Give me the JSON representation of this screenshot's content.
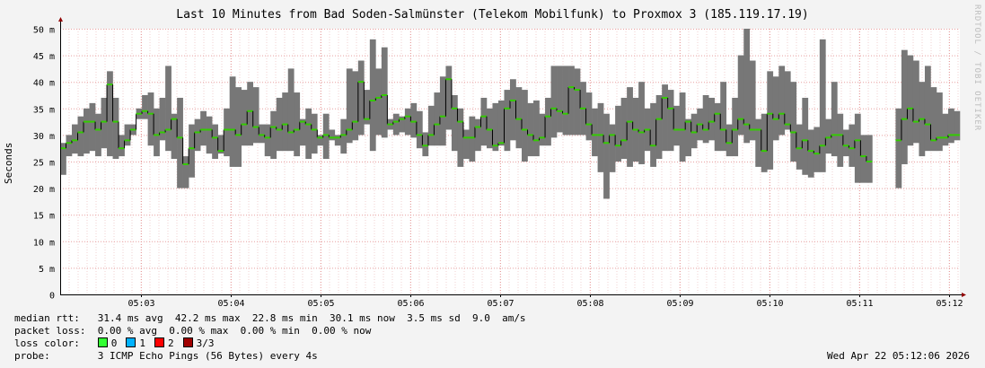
{
  "title": "Last 10 Minutes from Bad Soden-Salmünster (Telekom Mobilfunk) to Proxmox 3 (185.119.17.19)",
  "watermark": "RRDTOOL / TOBI OETIKER",
  "colors": {
    "background": "#f3f3f3",
    "plot_bg": "#ffffff",
    "grid": "#e8a0a0",
    "smoke": "#777777",
    "median": "#33cc00",
    "axis": "#000000"
  },
  "chart_data": {
    "type": "bar",
    "ylabel": "Seconds",
    "ylim": [
      0,
      50
    ],
    "yticks": [
      {
        "v": 0,
        "label": "0"
      },
      {
        "v": 5,
        "label": "5 m"
      },
      {
        "v": 10,
        "label": "10 m"
      },
      {
        "v": 15,
        "label": "15 m"
      },
      {
        "v": 20,
        "label": "20 m"
      },
      {
        "v": 25,
        "label": "25 m"
      },
      {
        "v": 30,
        "label": "30 m"
      },
      {
        "v": 35,
        "label": "35 m"
      },
      {
        "v": 40,
        "label": "40 m"
      },
      {
        "v": 45,
        "label": "45 m"
      },
      {
        "v": 50,
        "label": "50 m"
      }
    ],
    "xticks": [
      "05:03",
      "05:04",
      "05:05",
      "05:06",
      "05:07",
      "05:08",
      "05:09",
      "05:10",
      "05:11",
      "05:12"
    ],
    "series_note": "each sample: [min ms, max ms, median ms]; null = no data",
    "samples": [
      [
        22.5,
        28.5,
        27.5
      ],
      [
        26,
        30,
        28.5
      ],
      [
        26.5,
        32,
        29
      ],
      [
        26,
        33.5,
        30.5
      ],
      [
        26.5,
        35,
        32.5
      ],
      [
        27,
        36,
        32.5
      ],
      [
        26,
        34,
        31
      ],
      [
        27.5,
        37,
        32.5
      ],
      [
        26,
        42,
        39.5
      ],
      [
        25.5,
        37,
        32.5
      ],
      [
        26,
        30,
        27.5
      ],
      [
        28,
        32,
        29
      ],
      [
        30,
        32,
        31
      ],
      [
        33,
        35,
        34
      ],
      [
        33,
        37.5,
        34.5
      ],
      [
        28,
        38,
        34
      ],
      [
        26,
        35,
        30
      ],
      [
        29,
        37,
        30.5
      ],
      [
        27,
        43,
        31
      ],
      [
        25.5,
        34,
        33
      ],
      [
        20,
        37,
        29.5
      ],
      [
        20,
        26,
        24.5
      ],
      [
        22,
        32,
        27.5
      ],
      [
        27,
        33,
        30.5
      ],
      [
        28,
        34.5,
        31
      ],
      [
        26.5,
        33.5,
        31
      ],
      [
        25.5,
        32,
        29.5
      ],
      [
        26.5,
        30,
        27
      ],
      [
        26,
        35,
        31
      ],
      [
        24,
        41,
        31
      ],
      [
        24,
        39,
        30
      ],
      [
        28,
        38.5,
        32
      ],
      [
        28,
        40,
        34.5
      ],
      [
        28.5,
        39,
        31.5
      ],
      [
        28.5,
        32,
        30
      ],
      [
        26,
        32,
        29.5
      ],
      [
        25.5,
        34.5,
        31.5
      ],
      [
        27,
        37,
        31
      ],
      [
        27,
        38,
        32
      ],
      [
        27,
        42.5,
        30.5
      ],
      [
        26,
        38,
        31
      ],
      [
        28,
        33,
        32.5
      ],
      [
        25.5,
        35,
        32
      ],
      [
        26.5,
        34,
        31
      ],
      [
        28,
        30,
        29.5
      ],
      [
        25.5,
        34,
        30
      ],
      [
        29,
        31,
        29.5
      ],
      [
        28,
        30,
        29.5
      ],
      [
        26.5,
        33,
        30
      ],
      [
        28.5,
        42.5,
        31
      ],
      [
        29,
        42,
        32.5
      ],
      [
        30,
        44,
        40
      ],
      [
        32,
        38.5,
        33
      ],
      [
        27,
        48,
        36.5
      ],
      [
        30,
        42.5,
        37
      ],
      [
        29.5,
        46.5,
        37.5
      ],
      [
        31,
        33,
        32
      ],
      [
        30,
        34,
        32.5
      ],
      [
        30.5,
        33.5,
        33
      ],
      [
        30,
        35,
        33.5
      ],
      [
        29.5,
        36,
        32.5
      ],
      [
        27.5,
        34.5,
        30
      ],
      [
        26,
        30.5,
        28
      ],
      [
        28,
        35.5,
        30
      ],
      [
        28,
        38,
        32
      ],
      [
        28,
        41,
        33.5
      ],
      [
        31,
        43,
        40.5
      ],
      [
        27,
        37.5,
        35
      ],
      [
        24,
        35,
        32.5
      ],
      [
        25.5,
        31,
        29.5
      ],
      [
        25,
        33.5,
        29.5
      ],
      [
        27,
        33,
        31.5
      ],
      [
        28,
        37,
        33.5
      ],
      [
        27.5,
        35,
        31
      ],
      [
        27,
        36,
        28
      ],
      [
        28,
        36.5,
        28.5
      ],
      [
        27,
        38.5,
        35
      ],
      [
        29,
        40.5,
        36.5
      ],
      [
        27.5,
        39,
        33
      ],
      [
        25,
        38.5,
        31
      ],
      [
        26,
        36,
        30
      ],
      [
        26,
        36.5,
        29
      ],
      [
        28,
        34,
        29.5
      ],
      [
        28,
        37,
        33.5
      ],
      [
        29.5,
        43,
        35
      ],
      [
        30.5,
        43,
        34.5
      ],
      [
        30,
        43,
        34
      ],
      [
        30,
        43,
        39
      ],
      [
        30,
        42.5,
        38.5
      ],
      [
        30,
        40,
        35
      ],
      [
        29,
        38,
        32
      ],
      [
        26,
        35,
        30
      ],
      [
        23,
        36,
        30
      ],
      [
        18,
        34,
        28.5
      ],
      [
        23,
        32,
        30
      ],
      [
        25,
        35.5,
        28
      ],
      [
        25.5,
        37,
        29
      ],
      [
        24,
        39,
        32.5
      ],
      [
        25,
        37,
        31
      ],
      [
        24.5,
        40,
        30.5
      ],
      [
        27,
        35,
        31
      ],
      [
        24,
        36,
        28
      ],
      [
        25.5,
        37.5,
        33
      ],
      [
        27,
        39.5,
        37
      ],
      [
        27,
        38.5,
        35
      ],
      [
        28,
        35.5,
        31
      ],
      [
        25,
        38,
        31
      ],
      [
        26,
        33,
        32.5
      ],
      [
        27.5,
        34,
        30.5
      ],
      [
        29,
        35,
        32
      ],
      [
        28.5,
        37.5,
        31
      ],
      [
        29,
        37,
        32.5
      ],
      [
        27,
        36,
        34
      ],
      [
        27,
        40,
        31
      ],
      [
        26,
        32,
        28.5
      ],
      [
        26,
        37,
        31
      ],
      [
        30,
        45,
        33
      ],
      [
        28.5,
        50,
        32
      ],
      [
        29,
        44,
        31
      ],
      [
        24,
        33,
        31
      ],
      [
        23,
        34,
        27
      ],
      [
        23.5,
        42,
        34
      ],
      [
        29,
        41,
        33
      ],
      [
        30,
        43,
        34
      ],
      [
        31,
        42,
        32
      ],
      [
        25,
        40,
        30.5
      ],
      [
        23.5,
        32,
        27.5
      ],
      [
        22.5,
        37,
        29
      ],
      [
        22,
        31,
        27
      ],
      [
        23,
        31.5,
        26.5
      ],
      [
        23,
        48,
        28
      ],
      [
        26.5,
        33,
        29.5
      ],
      [
        26,
        40,
        30
      ],
      [
        24,
        34,
        30
      ],
      [
        26,
        31,
        28
      ],
      [
        24,
        32,
        27.5
      ],
      [
        21,
        34,
        29
      ],
      [
        21,
        30,
        26
      ],
      [
        21,
        30,
        25
      ],
      [
        null,
        null,
        null
      ],
      [
        null,
        null,
        null
      ],
      [
        null,
        null,
        null
      ],
      [
        null,
        null,
        null
      ],
      [
        20,
        35,
        29
      ],
      [
        24.5,
        46,
        33
      ],
      [
        28,
        45,
        35
      ],
      [
        28.5,
        44,
        32.5
      ],
      [
        26,
        40,
        33
      ],
      [
        27,
        43,
        32
      ],
      [
        27,
        39,
        29
      ],
      [
        27,
        38,
        29.5
      ],
      [
        28,
        34,
        29.5
      ],
      [
        28.5,
        35,
        30
      ],
      [
        29,
        34.5,
        30
      ]
    ]
  },
  "legend": {
    "median_label": "median rtt:",
    "median_text": "31.4 ms avg  42.2 ms max  22.8 ms min  30.1 ms now  3.5 ms sd  9.0  am/s",
    "loss_label": "packet loss:",
    "loss_text": "0.00 % avg  0.00 % max  0.00 % min  0.00 % now",
    "color_label": "loss color:",
    "loss_colors": [
      {
        "label": "0",
        "color": "#33ff33"
      },
      {
        "label": "1",
        "color": "#00b2ff"
      },
      {
        "label": "2",
        "color": "#ff0000"
      },
      {
        "label": "3/3",
        "color": "#a00000"
      }
    ],
    "probe_label": "probe:",
    "probe_text": "3 ICMP Echo Pings (56 Bytes) every 4s",
    "timestamp": "Wed Apr 22 05:12:06 2026"
  }
}
